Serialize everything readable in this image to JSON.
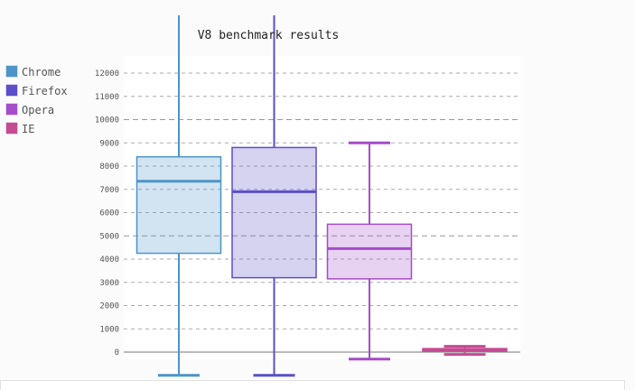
{
  "chart_data": {
    "type": "box",
    "title": "V8 benchmark results",
    "xlabel": "",
    "ylabel": "",
    "ylim": [
      0,
      12000
    ],
    "yticks": [
      0,
      1000,
      2000,
      3000,
      4000,
      5000,
      6000,
      7000,
      8000,
      9000,
      10000,
      11000,
      12000
    ],
    "major_yticks": [
      0,
      5000,
      10000
    ],
    "grid": true,
    "legend_position": "left",
    "series": [
      {
        "name": "Chrome",
        "color": "#4b95c9",
        "min": -1000,
        "q1": 4250,
        "median": 7350,
        "q3": 8400,
        "max": 14500
      },
      {
        "name": "Firefox",
        "color": "#5a4fc9",
        "min": -1000,
        "q1": 3200,
        "median": 6900,
        "q3": 8800,
        "max": 14500
      },
      {
        "name": "Opera",
        "color": "#a54cc9",
        "min": -300,
        "q1": 3150,
        "median": 4450,
        "q3": 5500,
        "max": 9000
      },
      {
        "name": "IE",
        "color": "#c44a92",
        "min": -100,
        "q1": 50,
        "median": 100,
        "q3": 150,
        "max": 250
      }
    ]
  }
}
